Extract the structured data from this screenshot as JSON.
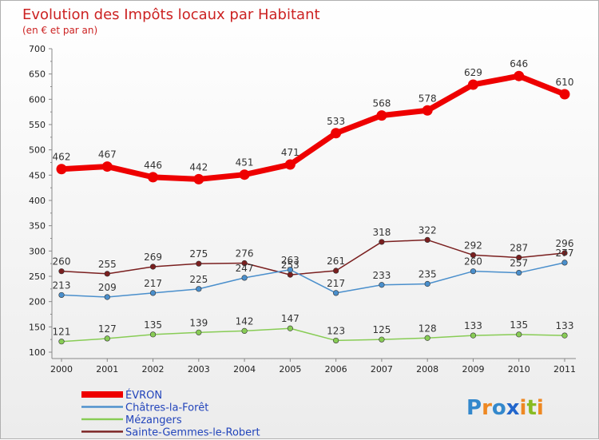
{
  "chart_data": {
    "type": "line",
    "title": "Evolution des Impôts locaux par Habitant",
    "subtitle": "(en € et par an)",
    "x": [
      "2000",
      "2001",
      "2002",
      "2003",
      "2004",
      "2005",
      "2006",
      "2007",
      "2008",
      "2009",
      "2010",
      "2011"
    ],
    "ylim": [
      100,
      700
    ],
    "yticks": [
      100,
      150,
      200,
      250,
      300,
      350,
      400,
      450,
      500,
      550,
      600,
      650,
      700
    ],
    "grid": false,
    "legend_position": "bottom-left",
    "series": [
      {
        "name": "ÉVRON",
        "color": "#ee0000",
        "values": [
          462,
          467,
          446,
          442,
          451,
          471,
          533,
          568,
          578,
          629,
          646,
          610
        ]
      },
      {
        "name": "Châtres-la-Forêt",
        "color": "#4a8fcc",
        "values": [
          213,
          209,
          217,
          225,
          247,
          263,
          217,
          233,
          235,
          260,
          257,
          277
        ]
      },
      {
        "name": "Mézangers",
        "color": "#88cc55",
        "values": [
          121,
          127,
          135,
          139,
          142,
          147,
          123,
          125,
          128,
          133,
          135,
          133
        ]
      },
      {
        "name": "Sainte-Gemmes-le-Robert",
        "color": "#7a1f1f",
        "values": [
          260,
          255,
          269,
          275,
          276,
          253,
          261,
          318,
          322,
          292,
          287,
          296
        ]
      }
    ]
  },
  "logo": {
    "text": "Proxiti"
  }
}
